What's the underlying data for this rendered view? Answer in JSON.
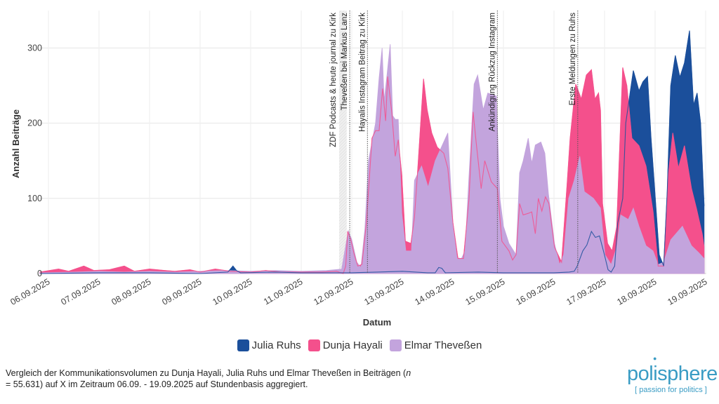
{
  "chart_data": {
    "type": "area",
    "title": "",
    "xlabel": "Datum",
    "ylabel": "Anzahl Beiträge",
    "ylim": [
      0,
      350
    ],
    "xlim_days": [
      -0.17,
      12.98
    ],
    "x_unit": "days since 06.09.2025 00:00",
    "y_ticks": [
      0,
      100,
      200,
      300
    ],
    "x_ticks": [
      "06.09.2025",
      "07.09.2025",
      "08.09.2025",
      "09.09.2025",
      "10.09.2025",
      "11.09.2025",
      "12.09.2025",
      "13.09.2025",
      "14.09.2025",
      "15.09.2025",
      "16.09.2025",
      "17.09.2025",
      "18.09.2025",
      "19.09.2025"
    ],
    "grid": true,
    "legend_position": "bottom",
    "series": [
      {
        "name": "Julia Ruhs",
        "color": "#1b4f9b",
        "points": [
          [
            -0.17,
            0
          ],
          [
            1,
            1
          ],
          [
            2,
            1
          ],
          [
            3,
            0
          ],
          [
            3.55,
            2
          ],
          [
            3.65,
            10
          ],
          [
            3.72,
            4
          ],
          [
            3.8,
            1
          ],
          [
            4.5,
            2
          ],
          [
            5,
            1
          ],
          [
            6,
            1
          ],
          [
            6.5,
            2
          ],
          [
            7,
            3
          ],
          [
            7.5,
            1
          ],
          [
            7.65,
            1
          ],
          [
            7.72,
            8
          ],
          [
            7.78,
            7
          ],
          [
            7.85,
            1
          ],
          [
            8.5,
            2
          ],
          [
            9,
            1
          ],
          [
            10,
            1
          ],
          [
            10.3,
            2
          ],
          [
            10.4,
            3
          ],
          [
            10.46,
            10
          ],
          [
            10.57,
            30
          ],
          [
            10.65,
            38
          ],
          [
            10.74,
            56
          ],
          [
            10.82,
            48
          ],
          [
            10.9,
            50
          ],
          [
            10.99,
            27
          ],
          [
            11.07,
            5
          ],
          [
            11.13,
            2
          ],
          [
            11.2,
            10
          ],
          [
            11.26,
            67
          ],
          [
            11.36,
            100
          ],
          [
            11.42,
            200
          ],
          [
            11.57,
            270
          ],
          [
            11.68,
            243
          ],
          [
            11.76,
            255
          ],
          [
            11.85,
            262
          ],
          [
            11.92,
            180
          ],
          [
            11.99,
            113
          ],
          [
            12.08,
            25
          ],
          [
            12.17,
            10
          ],
          [
            12.24,
            110
          ],
          [
            12.31,
            250
          ],
          [
            12.4,
            290
          ],
          [
            12.49,
            261
          ],
          [
            12.58,
            280
          ],
          [
            12.68,
            323
          ],
          [
            12.76,
            224
          ],
          [
            12.83,
            240
          ],
          [
            12.9,
            200
          ],
          [
            12.97,
            90
          ]
        ]
      },
      {
        "name": "Dunja Hayali",
        "color": "#f4508c",
        "points": [
          [
            -0.17,
            2
          ],
          [
            0.2,
            6
          ],
          [
            0.4,
            3
          ],
          [
            0.7,
            10
          ],
          [
            0.9,
            4
          ],
          [
            1.2,
            5
          ],
          [
            1.5,
            10
          ],
          [
            1.7,
            3
          ],
          [
            2.0,
            6
          ],
          [
            2.3,
            4
          ],
          [
            2.5,
            3
          ],
          [
            2.8,
            5
          ],
          [
            3.0,
            2
          ],
          [
            3.3,
            6
          ],
          [
            3.6,
            3
          ],
          [
            4.0,
            2
          ],
          [
            4.3,
            4
          ],
          [
            4.6,
            2
          ],
          [
            5.0,
            2
          ],
          [
            5.4,
            2
          ],
          [
            5.7,
            3
          ],
          [
            5.83,
            0
          ],
          [
            5.88,
            10
          ],
          [
            5.92,
            56
          ],
          [
            5.98,
            45
          ],
          [
            6.05,
            25
          ],
          [
            6.12,
            10
          ],
          [
            6.2,
            12
          ],
          [
            6.29,
            68
          ],
          [
            6.4,
            180
          ],
          [
            6.47,
            190
          ],
          [
            6.54,
            190
          ],
          [
            6.61,
            246
          ],
          [
            6.67,
            203
          ],
          [
            6.71,
            262
          ],
          [
            6.79,
            215
          ],
          [
            6.86,
            156
          ],
          [
            6.92,
            178
          ],
          [
            6.99,
            130
          ],
          [
            7.06,
            43
          ],
          [
            7.17,
            40
          ],
          [
            7.24,
            75
          ],
          [
            7.31,
            143
          ],
          [
            7.42,
            259
          ],
          [
            7.49,
            218
          ],
          [
            7.58,
            187
          ],
          [
            7.69,
            168
          ],
          [
            7.82,
            160
          ],
          [
            7.9,
            140
          ],
          [
            8.0,
            68
          ],
          [
            8.1,
            20
          ],
          [
            8.21,
            20
          ],
          [
            8.32,
            100
          ],
          [
            8.4,
            215
          ],
          [
            8.46,
            175
          ],
          [
            8.56,
            113
          ],
          [
            8.63,
            150
          ],
          [
            8.76,
            122
          ],
          [
            8.88,
            113
          ],
          [
            8.97,
            43
          ],
          [
            9.11,
            30
          ],
          [
            9.18,
            18
          ],
          [
            9.25,
            25
          ],
          [
            9.32,
            93
          ],
          [
            9.39,
            78
          ],
          [
            9.49,
            80
          ],
          [
            9.56,
            82
          ],
          [
            9.63,
            53
          ],
          [
            9.69,
            100
          ],
          [
            9.76,
            83
          ],
          [
            9.83,
            102
          ],
          [
            9.9,
            93
          ],
          [
            10.01,
            35
          ],
          [
            10.15,
            15
          ],
          [
            10.26,
            119
          ],
          [
            10.32,
            180
          ],
          [
            10.36,
            206
          ],
          [
            10.43,
            252
          ],
          [
            10.54,
            232
          ],
          [
            10.64,
            264
          ],
          [
            10.74,
            271
          ],
          [
            10.81,
            232
          ],
          [
            10.88,
            240
          ],
          [
            10.92,
            217
          ],
          [
            10.96,
            93
          ],
          [
            11.06,
            40
          ],
          [
            11.15,
            30
          ],
          [
            11.24,
            62
          ],
          [
            11.36,
            274
          ],
          [
            11.44,
            250
          ],
          [
            11.54,
            180
          ],
          [
            11.68,
            170
          ],
          [
            11.82,
            143
          ],
          [
            11.96,
            82
          ],
          [
            12.06,
            10
          ],
          [
            12.17,
            10
          ],
          [
            12.26,
            130
          ],
          [
            12.35,
            187
          ],
          [
            12.46,
            140
          ],
          [
            12.58,
            170
          ],
          [
            12.72,
            113
          ],
          [
            12.82,
            86
          ],
          [
            12.93,
            53
          ],
          [
            12.97,
            35
          ]
        ]
      },
      {
        "name": "Elmar Theveßen",
        "color": "#c3a4dd",
        "points": [
          [
            -0.17,
            1
          ],
          [
            0.5,
            2
          ],
          [
            1,
            3
          ],
          [
            1.5,
            2
          ],
          [
            2,
            3
          ],
          [
            2.5,
            2
          ],
          [
            3,
            3
          ],
          [
            3.5,
            4
          ],
          [
            4,
            3
          ],
          [
            4.5,
            4
          ],
          [
            5,
            3
          ],
          [
            5.5,
            4
          ],
          [
            5.8,
            6
          ],
          [
            5.93,
            57
          ],
          [
            6.0,
            45
          ],
          [
            6.1,
            15
          ],
          [
            6.18,
            8
          ],
          [
            6.26,
            60
          ],
          [
            6.33,
            150
          ],
          [
            6.47,
            200
          ],
          [
            6.54,
            260
          ],
          [
            6.6,
            300
          ],
          [
            6.64,
            230
          ],
          [
            6.69,
            260
          ],
          [
            6.76,
            305
          ],
          [
            6.81,
            210
          ],
          [
            6.86,
            205
          ],
          [
            6.92,
            205
          ],
          [
            6.99,
            80
          ],
          [
            7.07,
            30
          ],
          [
            7.18,
            30
          ],
          [
            7.24,
            124
          ],
          [
            7.38,
            143
          ],
          [
            7.51,
            115
          ],
          [
            7.65,
            150
          ],
          [
            7.9,
            187
          ],
          [
            8.0,
            68
          ],
          [
            8.08,
            21
          ],
          [
            8.17,
            20
          ],
          [
            8.24,
            30
          ],
          [
            8.32,
            131
          ],
          [
            8.42,
            252
          ],
          [
            8.49,
            264
          ],
          [
            8.6,
            218
          ],
          [
            8.69,
            240
          ],
          [
            8.86,
            236
          ],
          [
            8.93,
            100
          ],
          [
            9.0,
            63
          ],
          [
            9.11,
            40
          ],
          [
            9.25,
            25
          ],
          [
            9.32,
            134
          ],
          [
            9.39,
            150
          ],
          [
            9.49,
            180
          ],
          [
            9.56,
            147
          ],
          [
            9.63,
            171
          ],
          [
            9.74,
            175
          ],
          [
            9.82,
            160
          ],
          [
            9.89,
            106
          ],
          [
            10.01,
            40
          ],
          [
            10.11,
            12
          ],
          [
            10.19,
            25
          ],
          [
            10.29,
            100
          ],
          [
            10.4,
            124
          ],
          [
            10.51,
            156
          ],
          [
            10.6,
            109
          ],
          [
            10.78,
            100
          ],
          [
            10.92,
            87
          ],
          [
            11.01,
            25
          ],
          [
            11.13,
            12
          ],
          [
            11.24,
            35
          ],
          [
            11.32,
            78
          ],
          [
            11.47,
            72
          ],
          [
            11.57,
            87
          ],
          [
            11.68,
            63
          ],
          [
            11.82,
            37
          ],
          [
            11.96,
            30
          ],
          [
            12.06,
            12
          ],
          [
            12.17,
            15
          ],
          [
            12.31,
            45
          ],
          [
            12.4,
            52
          ],
          [
            12.54,
            63
          ],
          [
            12.72,
            37
          ],
          [
            12.86,
            28
          ],
          [
            12.97,
            20
          ]
        ]
      }
    ],
    "annotations": [
      {
        "label": "ZDF Podcasts & heute journal zu Kirk",
        "start": 5.75,
        "end": 5.9,
        "kind": "band"
      },
      {
        "label": "Theveßen bei Markus Lanz",
        "at": 5.96,
        "kind": "line"
      },
      {
        "label": "Hayalis Instagram Beitrag zu Kirk",
        "at": 6.31,
        "kind": "line"
      },
      {
        "label": "Ankündigung Rückzug Instagram",
        "at": 8.88,
        "kind": "line"
      },
      {
        "label": "Erste Meldungen zu Ruhs",
        "at": 10.47,
        "kind": "line"
      }
    ]
  },
  "legend": [
    {
      "label": "Julia Ruhs",
      "color": "#1b4f9b"
    },
    {
      "label": "Dunja Hayali",
      "color": "#f4508c"
    },
    {
      "label": "Elmar Theveßen",
      "color": "#c3a4dd"
    }
  ],
  "caption": {
    "pre": "Vergleich der Kommunikationsvolumen zu Dunja Hayali, Julia Ruhs und Elmar Theveßen in Beiträgen (",
    "n_symbol": "n",
    "post": " = 55.631) auf X im Zeitraum 06.09. - 19.09.2025 auf Stundenbasis aggregiert."
  },
  "logo": {
    "word": "polisphere",
    "tagline": "[ passion for politics ]"
  }
}
